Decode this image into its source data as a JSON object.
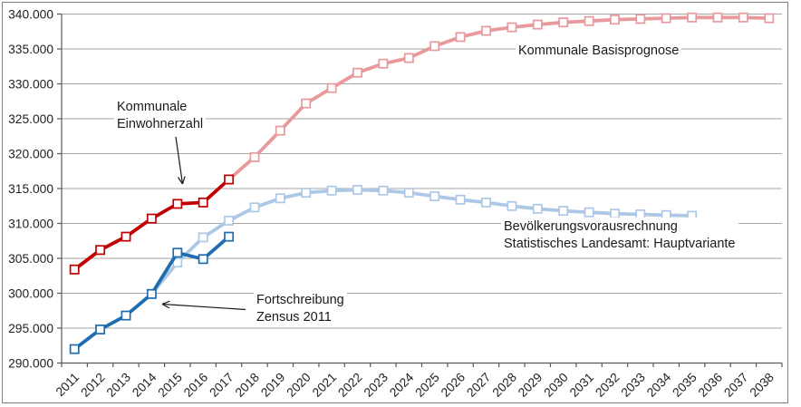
{
  "chart_data": {
    "type": "line",
    "title": "",
    "xlabel": "",
    "ylabel": "",
    "categories": [
      2011,
      2012,
      2013,
      2014,
      2015,
      2016,
      2017,
      2018,
      2019,
      2020,
      2021,
      2022,
      2023,
      2024,
      2025,
      2026,
      2027,
      2028,
      2029,
      2030,
      2031,
      2032,
      2033,
      2034,
      2035,
      2036,
      2037,
      2038
    ],
    "ylim": [
      290000,
      340000
    ],
    "ytick_step": 5000,
    "ytick_labels": [
      "290.000",
      "295.000",
      "300.000",
      "305.000",
      "310.000",
      "315.000",
      "320.000",
      "325.000",
      "330.000",
      "335.000",
      "340.000"
    ],
    "grid": true,
    "legend_position": "none",
    "marker": "open-square",
    "series": [
      {
        "name": "Kommunale Basisprognose",
        "color": "#e8999b",
        "start_year": 2017,
        "values": [
          316300,
          319500,
          323300,
          327200,
          329400,
          331600,
          332900,
          333700,
          335400,
          336700,
          337600,
          338100,
          338500,
          338800,
          339000,
          339200,
          339300,
          339400,
          339500,
          339500,
          339500,
          339400
        ]
      },
      {
        "name": "Bevölkerungsvorausrechnung Statistisches Landesamt: Hauptvariante",
        "color": "#adc8e6",
        "start_year": 2014,
        "values": [
          299900,
          304400,
          308000,
          310400,
          312300,
          313600,
          314400,
          314700,
          314800,
          314700,
          314400,
          313900,
          313400,
          313000,
          312500,
          312100,
          311800,
          311600,
          311400,
          311300,
          311200,
          311100
        ]
      },
      {
        "name": "Kommunale Einwohnerzahl",
        "color": "#c00000",
        "start_year": 2011,
        "values": [
          303400,
          306200,
          308100,
          310700,
          312800,
          313000,
          316300
        ]
      },
      {
        "name": "Fortschreibung Zensus 2011",
        "color": "#1f6cb0",
        "start_year": 2011,
        "values": [
          292000,
          294800,
          296800,
          299900,
          305800,
          304900,
          308100
        ]
      }
    ],
    "colors": {
      "gridline": "#a6a6a6",
      "axis": "#595959",
      "tick_text": "#1f1f1f",
      "annotation_text": "#1a1a1a"
    }
  },
  "annotations": {
    "einwohnerzahl": {
      "line1": "Kommunale",
      "line2": "Einwohnerzahl"
    },
    "basisprognose": {
      "line1": "Kommunale Basisprognose"
    },
    "vorausrechnung": {
      "line1": "Bevölkerungsvorausrechnung",
      "line2": "Statistisches Landesamt: Hauptvariante"
    },
    "zensus": {
      "line1": "Fortschreibung",
      "line2": "Zensus 2011"
    }
  }
}
